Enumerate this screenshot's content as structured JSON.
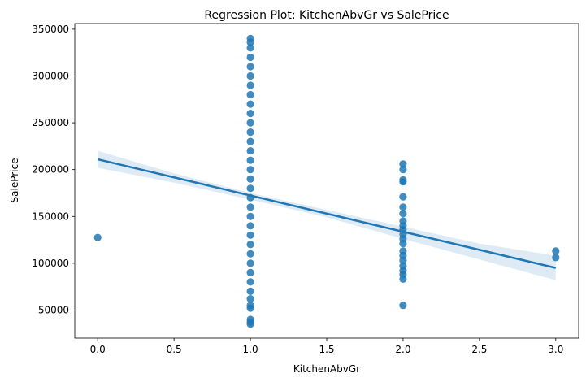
{
  "chart_data": {
    "type": "scatter",
    "title": "Regression Plot: KitchenAbvGr vs SalePrice",
    "xlabel": "KitchenAbvGr",
    "ylabel": "SalePrice",
    "xlim": [
      -0.15,
      3.15
    ],
    "ylim": [
      20000,
      356000
    ],
    "x_ticks": [
      0.0,
      0.5,
      1.0,
      1.5,
      2.0,
      2.5,
      3.0
    ],
    "x_tick_labels": [
      "0.0",
      "0.5",
      "1.0",
      "1.5",
      "2.0",
      "2.5",
      "3.0"
    ],
    "y_ticks": [
      50000,
      100000,
      150000,
      200000,
      250000,
      300000,
      350000
    ],
    "y_tick_labels": [
      "50000",
      "100000",
      "150000",
      "200000",
      "250000",
      "300000",
      "350000"
    ],
    "grid": false,
    "colors": {
      "points": "#1f77b4",
      "line": "#1f77b4",
      "ci_band": "#1f77b4"
    },
    "points": [
      {
        "x": 0,
        "y": 127500
      },
      {
        "x": 1,
        "y": 340000
      },
      {
        "x": 1,
        "y": 336000
      },
      {
        "x": 1,
        "y": 330000
      },
      {
        "x": 1,
        "y": 320000
      },
      {
        "x": 1,
        "y": 310000
      },
      {
        "x": 1,
        "y": 300000
      },
      {
        "x": 1,
        "y": 290000
      },
      {
        "x": 1,
        "y": 280000
      },
      {
        "x": 1,
        "y": 270000
      },
      {
        "x": 1,
        "y": 260000
      },
      {
        "x": 1,
        "y": 250000
      },
      {
        "x": 1,
        "y": 240000
      },
      {
        "x": 1,
        "y": 230000
      },
      {
        "x": 1,
        "y": 220000
      },
      {
        "x": 1,
        "y": 210000
      },
      {
        "x": 1,
        "y": 200000
      },
      {
        "x": 1,
        "y": 190000
      },
      {
        "x": 1,
        "y": 180000
      },
      {
        "x": 1,
        "y": 170000
      },
      {
        "x": 1,
        "y": 160000
      },
      {
        "x": 1,
        "y": 150000
      },
      {
        "x": 1,
        "y": 140000
      },
      {
        "x": 1,
        "y": 130000
      },
      {
        "x": 1,
        "y": 120000
      },
      {
        "x": 1,
        "y": 110000
      },
      {
        "x": 1,
        "y": 100000
      },
      {
        "x": 1,
        "y": 90000
      },
      {
        "x": 1,
        "y": 80000
      },
      {
        "x": 1,
        "y": 70000
      },
      {
        "x": 1,
        "y": 62000
      },
      {
        "x": 1,
        "y": 55000
      },
      {
        "x": 1,
        "y": 52000
      },
      {
        "x": 1,
        "y": 40000
      },
      {
        "x": 1,
        "y": 37000
      },
      {
        "x": 1,
        "y": 35000
      },
      {
        "x": 2,
        "y": 206000
      },
      {
        "x": 2,
        "y": 200000
      },
      {
        "x": 2,
        "y": 189000
      },
      {
        "x": 2,
        "y": 187000
      },
      {
        "x": 2,
        "y": 171000
      },
      {
        "x": 2,
        "y": 160000
      },
      {
        "x": 2,
        "y": 153000
      },
      {
        "x": 2,
        "y": 145000
      },
      {
        "x": 2,
        "y": 140000
      },
      {
        "x": 2,
        "y": 136000
      },
      {
        "x": 2,
        "y": 131000
      },
      {
        "x": 2,
        "y": 126000
      },
      {
        "x": 2,
        "y": 121000
      },
      {
        "x": 2,
        "y": 113000
      },
      {
        "x": 2,
        "y": 108000
      },
      {
        "x": 2,
        "y": 103000
      },
      {
        "x": 2,
        "y": 97000
      },
      {
        "x": 2,
        "y": 92000
      },
      {
        "x": 2,
        "y": 88000
      },
      {
        "x": 2,
        "y": 83000
      },
      {
        "x": 2,
        "y": 55000
      },
      {
        "x": 3,
        "y": 113000
      },
      {
        "x": 3,
        "y": 106000
      }
    ],
    "regression_line": [
      {
        "x": 0,
        "y": 211000
      },
      {
        "x": 3,
        "y": 95000
      }
    ],
    "confidence_band": [
      {
        "x": 0,
        "low": 202000,
        "high": 220000
      },
      {
        "x": 0.5,
        "low": 186000,
        "high": 196000
      },
      {
        "x": 1,
        "low": 168000,
        "high": 175000
      },
      {
        "x": 1.5,
        "low": 149000,
        "high": 157000
      },
      {
        "x": 2,
        "low": 126000,
        "high": 139000
      },
      {
        "x": 2.5,
        "low": 104000,
        "high": 121000
      },
      {
        "x": 3,
        "low": 82000,
        "high": 108000
      }
    ]
  }
}
